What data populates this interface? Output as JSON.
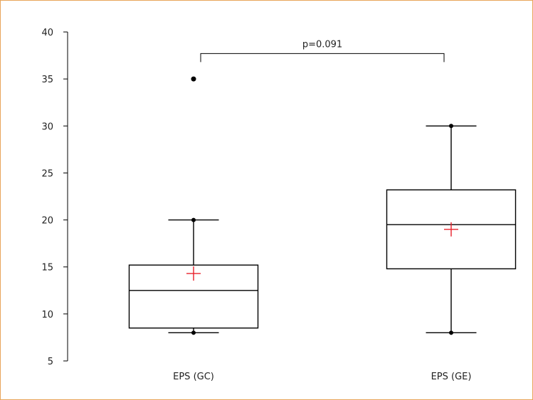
{
  "chart_data": {
    "type": "box",
    "title": "",
    "xlabel": "",
    "ylabel": "",
    "ylim": [
      5,
      40
    ],
    "yticks": [
      5,
      10,
      15,
      20,
      25,
      30,
      35,
      40
    ],
    "categories": [
      "EPS (GC)",
      "EPS (GE)"
    ],
    "boxes": [
      {
        "category": "EPS (GC)",
        "min": 8,
        "q1": 8.5,
        "median": 12.5,
        "q3": 15.2,
        "max": 20,
        "mean": 14.3,
        "outliers": [
          35
        ]
      },
      {
        "category": "EPS (GE)",
        "min": 8,
        "q1": 14.8,
        "median": 19.5,
        "q3": 23.2,
        "max": 30,
        "mean": 19,
        "outliers": []
      }
    ],
    "annotation": {
      "text": "p=0.091",
      "between": [
        "EPS (GC)",
        "EPS (GE)"
      ],
      "y": 37.7
    },
    "colors": {
      "box": "#000000",
      "mean_marker": "#e8202a",
      "frame": "#e8a55a"
    },
    "grid": false,
    "legend": "none"
  }
}
